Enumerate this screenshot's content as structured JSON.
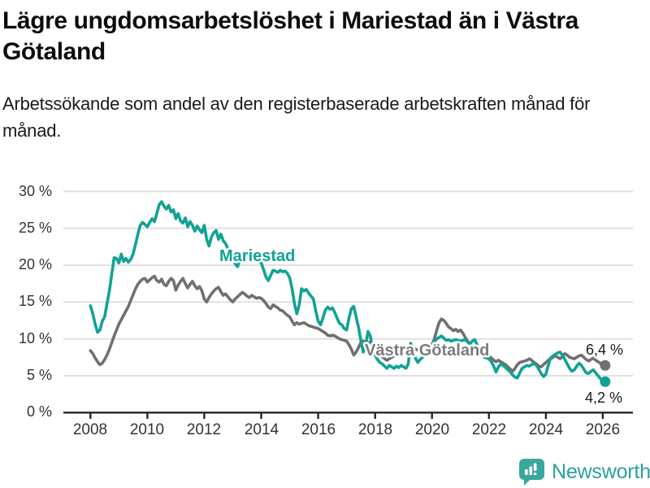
{
  "chart_data": {
    "type": "line",
    "title": "Lägre ungdomsarbetslöshet i Mariestad än i Västra Götaland",
    "subtitle": "Arbetssökande som andel av den registerbaserade arbetskraften månad för månad.",
    "unit": "%",
    "x_start": "2008-01",
    "x_end": "2026-02",
    "x_step": "1 month",
    "ylim": [
      0,
      30
    ],
    "grid": "horizontal",
    "y_ticks": [
      "30 %",
      "25 %",
      "20 %",
      "15 %",
      "10 %",
      "5 %",
      "0 %"
    ],
    "x_ticks": [
      "2008",
      "2010",
      "2012",
      "2014",
      "2016",
      "2018",
      "2020",
      "2022",
      "2024",
      "2026"
    ],
    "legend_position": "inline-labels-on-lines",
    "series": [
      {
        "name": "Västra Götaland",
        "color": "#707070",
        "end_label": "6,4 %",
        "end_value": 6.4,
        "values": [
          8.4,
          8.0,
          7.4,
          6.9,
          6.5,
          6.7,
          7.2,
          7.8,
          8.6,
          9.5,
          10.4,
          11.2,
          12.0,
          12.6,
          13.2,
          13.8,
          14.4,
          15.2,
          16.0,
          16.8,
          17.4,
          17.8,
          18.1,
          18.2,
          17.7,
          18.0,
          18.3,
          18.5,
          17.9,
          17.7,
          18.1,
          17.4,
          17.2,
          17.8,
          18.2,
          17.9,
          16.6,
          17.3,
          17.8,
          18.2,
          17.5,
          16.9,
          17.4,
          17.8,
          17.2,
          16.8,
          17.1,
          16.5,
          15.4,
          15.0,
          15.6,
          16.1,
          16.5,
          16.8,
          17.0,
          16.4,
          15.9,
          16.1,
          15.7,
          15.3,
          15.0,
          15.4,
          15.7,
          16.0,
          16.3,
          16.1,
          15.8,
          15.6,
          15.9,
          15.7,
          15.5,
          15.6,
          15.5,
          15.2,
          14.8,
          14.3,
          14.1,
          14.6,
          14.4,
          14.2,
          13.9,
          13.8,
          13.5,
          13.2,
          13.0,
          12.4,
          11.9,
          12.2,
          12.0,
          12.1,
          12.2,
          12.0,
          11.8,
          11.7,
          11.6,
          11.5,
          11.4,
          11.2,
          11.0,
          10.8,
          10.5,
          10.4,
          10.5,
          10.4,
          10.2,
          10.0,
          9.9,
          9.8,
          9.7,
          9.2,
          8.6,
          7.8,
          8.2,
          8.8,
          9.5,
          9.7,
          9.5,
          9.4,
          9.6,
          9.2,
          8.8,
          8.4,
          8.0,
          7.6,
          7.3,
          7.1,
          7.3,
          7.5,
          7.7,
          7.8,
          7.7,
          7.8,
          7.9,
          8.2,
          8.5,
          8.7,
          8.8,
          8.6,
          8.5,
          8.4,
          8.6,
          8.5,
          8.7,
          9.0,
          9.2,
          10.0,
          11.2,
          12.2,
          12.7,
          12.5,
          12.1,
          11.6,
          11.4,
          11.1,
          11.3,
          11.0,
          11.2,
          10.8,
          10.2,
          9.7,
          9.3,
          9.0,
          8.7,
          8.5,
          8.2,
          8.0,
          7.9,
          7.8,
          7.7,
          7.4,
          7.1,
          6.9,
          7.1,
          6.9,
          6.7,
          6.5,
          6.2,
          5.9,
          5.6,
          6.0,
          6.5,
          6.8,
          6.9,
          7.0,
          7.1,
          7.3,
          7.1,
          6.8,
          6.6,
          6.3,
          6.2,
          6.5,
          6.8,
          7.1,
          7.3,
          7.5,
          7.7,
          7.5,
          7.3,
          7.6,
          8.0,
          7.8,
          7.5,
          7.4,
          7.3,
          7.5,
          7.7,
          7.8,
          7.5,
          7.2,
          7.0,
          7.2,
          7.4,
          7.1,
          6.9,
          6.7,
          6.5,
          6.4
        ]
      },
      {
        "name": "Mariestad",
        "color": "#11a294",
        "end_label": "4,2 %",
        "end_value": 4.2,
        "values": [
          14.5,
          13.4,
          12.0,
          10.9,
          11.2,
          12.4,
          13.0,
          14.8,
          16.5,
          18.8,
          21.0,
          20.9,
          20.3,
          21.5,
          20.5,
          20.9,
          20.4,
          20.8,
          21.5,
          22.8,
          24.2,
          25.4,
          25.8,
          25.5,
          25.2,
          25.8,
          26.3,
          25.9,
          27.0,
          28.2,
          28.6,
          28.0,
          27.6,
          28.1,
          27.2,
          27.5,
          26.3,
          27.0,
          26.0,
          25.7,
          26.4,
          25.2,
          25.9,
          25.4,
          24.6,
          25.3,
          24.8,
          24.4,
          25.4,
          23.5,
          22.6,
          23.8,
          24.4,
          24.7,
          23.5,
          24.2,
          23.3,
          22.9,
          22.2,
          21.6,
          21.0,
          20.2,
          19.8,
          20.6,
          21.1,
          21.3,
          20.8,
          21.0,
          20.9,
          20.7,
          20.9,
          20.5,
          20.3,
          19.4,
          18.4,
          17.9,
          18.6,
          19.3,
          19.2,
          19.0,
          19.3,
          19.1,
          19.2,
          18.9,
          18.3,
          16.8,
          14.8,
          13.4,
          14.6,
          16.8,
          16.5,
          16.7,
          16.2,
          15.8,
          15.4,
          13.8,
          12.4,
          11.9,
          12.8,
          13.9,
          14.3,
          14.0,
          14.2,
          13.6,
          12.8,
          12.1,
          11.9,
          11.4,
          11.2,
          12.8,
          14.1,
          14.4,
          13.0,
          11.6,
          9.8,
          8.2,
          9.0,
          11.0,
          10.4,
          8.6,
          7.8,
          7.2,
          6.8,
          6.6,
          6.3,
          6.0,
          6.4,
          6.2,
          6.0,
          6.3,
          6.1,
          6.4,
          6.2,
          6.0,
          6.6,
          9.4,
          8.6,
          7.4,
          6.8,
          7.2,
          7.5,
          7.8,
          8.4,
          9.0,
          9.2,
          9.6,
          10.0,
          10.2,
          10.4,
          10.1,
          9.8,
          9.9,
          9.7,
          9.8,
          9.9,
          9.8,
          9.7,
          9.8,
          9.9,
          9.6,
          9.3,
          9.7,
          9.9,
          9.2,
          8.4,
          7.8,
          7.5,
          7.4,
          7.3,
          6.9,
          6.3,
          5.5,
          6.2,
          6.6,
          6.4,
          6.1,
          5.8,
          5.5,
          5.1,
          4.8,
          4.7,
          5.4,
          6.0,
          6.2,
          6.4,
          6.3,
          6.5,
          6.7,
          6.4,
          5.9,
          5.3,
          4.9,
          5.2,
          6.4,
          7.4,
          7.7,
          7.9,
          8.1,
          8.2,
          7.8,
          7.2,
          6.6,
          6.0,
          5.6,
          5.8,
          6.3,
          6.7,
          6.4,
          5.9,
          5.4,
          5.3,
          5.6,
          5.8,
          5.4,
          5.0,
          4.6,
          4.3,
          4.2
        ]
      }
    ]
  },
  "branding": {
    "logo_text": "Newsworthy",
    "logo_color": "#3aa79f"
  }
}
